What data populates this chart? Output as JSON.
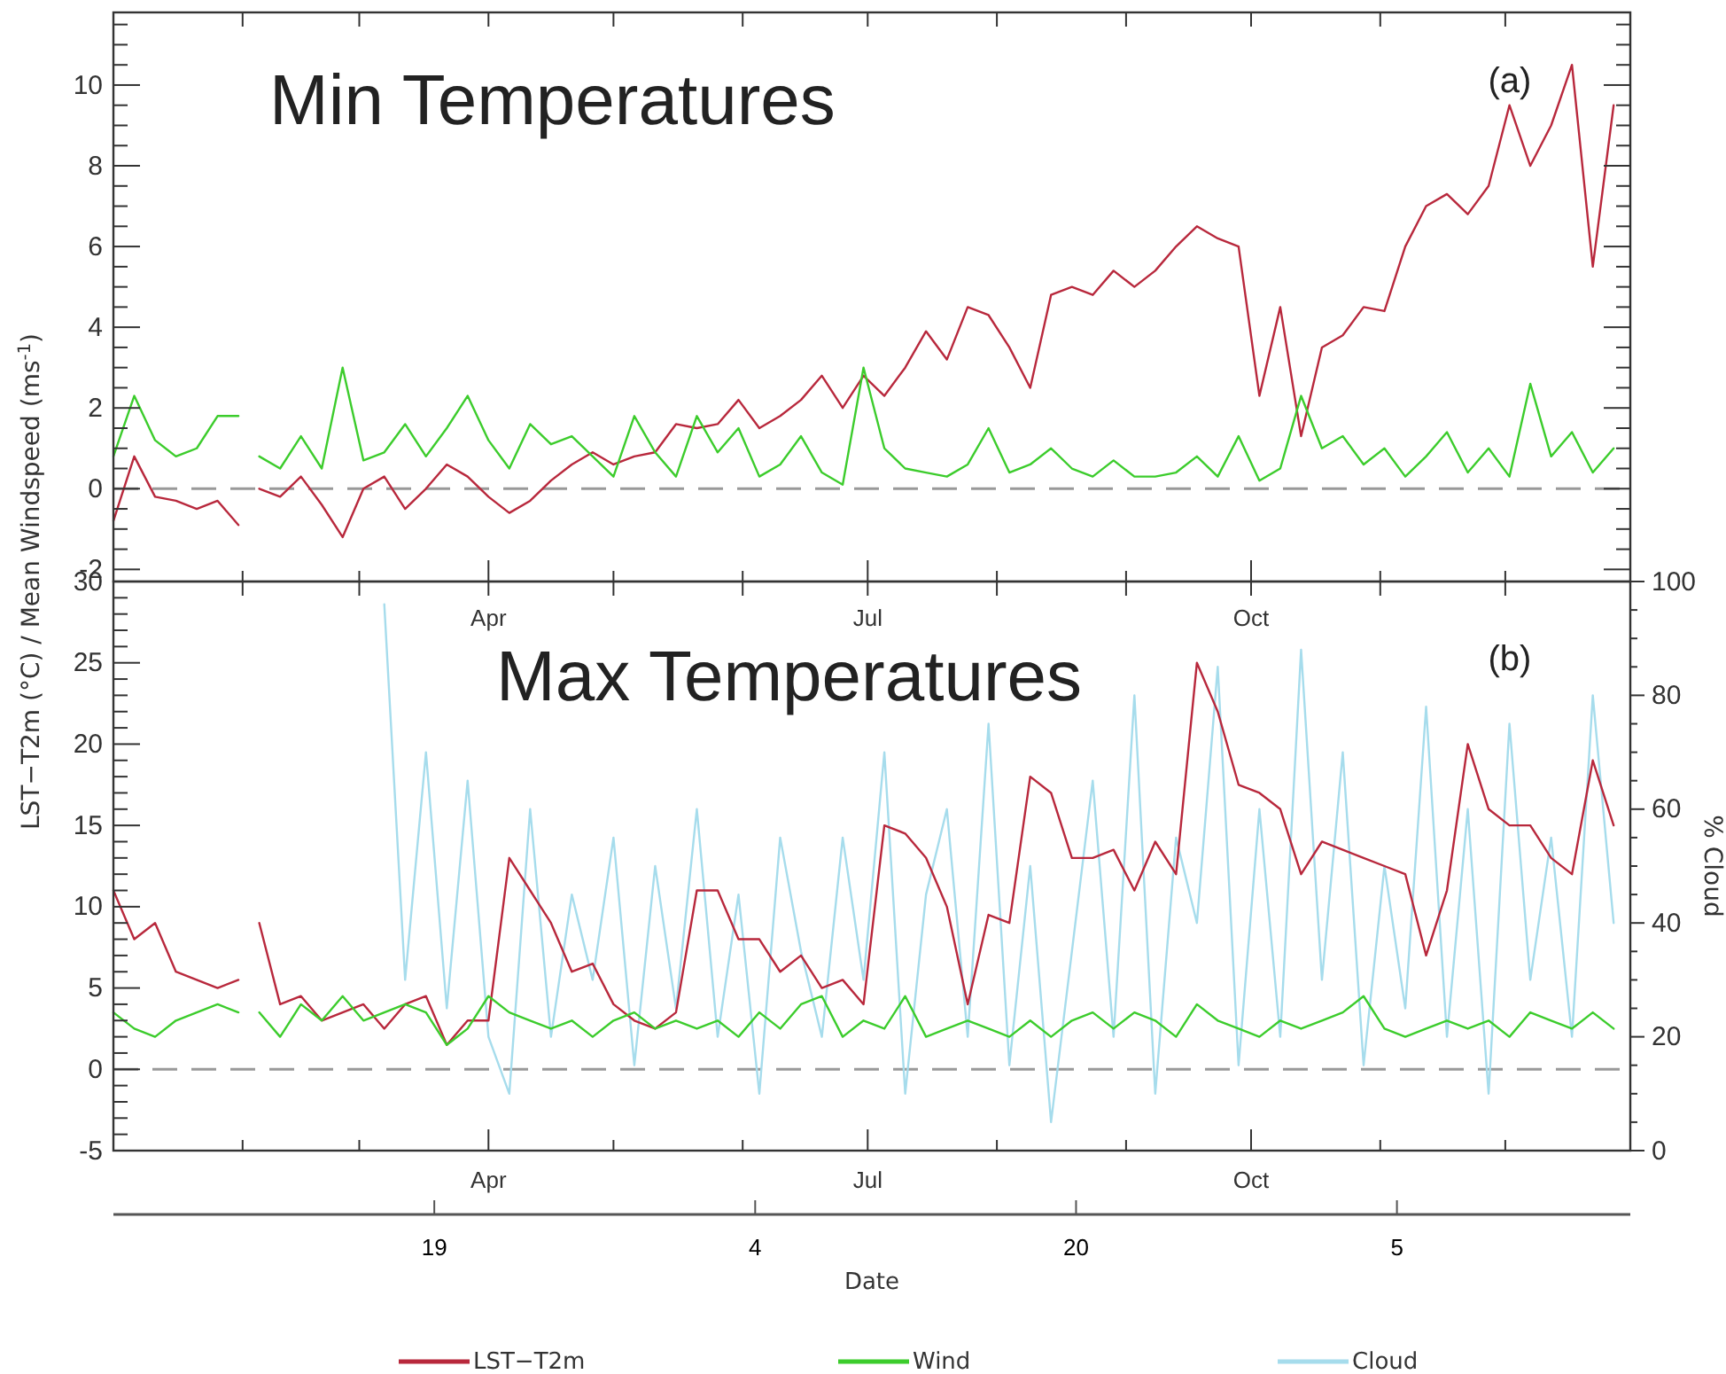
{
  "chart_data": [
    {
      "type": "line",
      "annotations": [
        "Min Temperatures",
        "(a)"
      ],
      "x": [
        "--01-01",
        "--01-06",
        "--01-11",
        "--01-16",
        "--01-21",
        "--01-26",
        "--01-31",
        "--02-02",
        "--02-05",
        "--02-10",
        "--02-15",
        "--02-20",
        "--02-25",
        "--03-02",
        "--03-07",
        "--03-12",
        "--03-17",
        "--03-22",
        "--03-27",
        "--04-01",
        "--04-06",
        "--04-11",
        "--04-16",
        "--04-21",
        "--04-26",
        "--05-01",
        "--05-06",
        "--05-11",
        "--05-16",
        "--05-21",
        "--05-26",
        "--05-31",
        "--06-05",
        "--06-10",
        "--06-15",
        "--06-20",
        "--06-25",
        "--06-30",
        "--07-05",
        "--07-10",
        "--07-15",
        "--07-20",
        "--07-25",
        "--07-30",
        "--08-04",
        "--08-09",
        "--08-14",
        "--08-19",
        "--08-24",
        "--08-29",
        "--09-03",
        "--09-08",
        "--09-13",
        "--09-18",
        "--09-23",
        "--09-28",
        "--10-03",
        "--10-08",
        "--10-13",
        "--10-18",
        "--10-23",
        "--10-28",
        "--11-02",
        "--11-07",
        "--11-12",
        "--11-17",
        "--11-22",
        "--11-27",
        "--12-02",
        "--12-07",
        "--12-12",
        "--12-17",
        "--12-22",
        "--12-27"
      ],
      "series": [
        {
          "color": "#b8283c",
          "values": [
            -0.8,
            0.8,
            -0.2,
            -0.3,
            -0.5,
            -0.3,
            -0.9,
            null,
            0.0,
            -0.2,
            0.3,
            -0.4,
            -1.2,
            0.0,
            0.3,
            -0.5,
            0.0,
            0.6,
            0.3,
            -0.2,
            -0.6,
            -0.3,
            0.2,
            0.6,
            0.9,
            0.6,
            0.8,
            0.9,
            1.6,
            1.5,
            1.6,
            2.2,
            1.5,
            1.8,
            2.2,
            2.8,
            2.0,
            2.8,
            2.3,
            3.0,
            3.9,
            3.2,
            4.5,
            4.3,
            3.5,
            2.5,
            4.8,
            5.0,
            4.8,
            5.4,
            5.0,
            5.4,
            6.0,
            6.5,
            6.2,
            6.0,
            2.3,
            4.5,
            1.3,
            3.5,
            3.8,
            4.5,
            4.4,
            6.0,
            7.0,
            7.3,
            6.8,
            7.5,
            9.5,
            8.0,
            9.0,
            10.5,
            5.5,
            9.5
          ]
        },
        {
          "color": "#3ccc2c",
          "values": [
            0.8,
            2.3,
            1.2,
            0.8,
            1.0,
            1.8,
            1.8,
            null,
            0.8,
            0.5,
            1.3,
            0.5,
            3.0,
            0.7,
            0.9,
            1.6,
            0.8,
            1.5,
            2.3,
            1.2,
            0.5,
            1.6,
            1.1,
            1.3,
            0.8,
            0.3,
            1.8,
            0.9,
            0.3,
            1.8,
            0.9,
            1.5,
            0.3,
            0.6,
            1.3,
            0.4,
            0.1,
            3.0,
            1.0,
            0.5,
            0.4,
            0.3,
            0.6,
            1.5,
            0.4,
            0.6,
            1.0,
            0.5,
            0.3,
            0.7,
            0.3,
            0.3,
            0.4,
            0.8,
            0.3,
            1.3,
            0.2,
            0.5,
            2.3,
            1.0,
            1.3,
            0.6,
            1.0,
            0.3,
            0.8,
            1.4,
            0.4,
            1.0,
            0.3,
            2.6,
            0.8,
            1.4,
            0.4,
            1.0
          ]
        }
      ],
      "xlim": [
        "--01-01",
        "--12-31"
      ],
      "xticks": [
        {
          "value": "--01-01",
          "label": null
        },
        {
          "value": "--02-01",
          "label": null
        },
        {
          "value": "--03-01",
          "label": null
        },
        {
          "value": "--04-01",
          "label": "Apr"
        },
        {
          "value": "--05-01",
          "label": null
        },
        {
          "value": "--06-01",
          "label": null
        },
        {
          "value": "--07-01",
          "label": "Jul"
        },
        {
          "value": "--08-01",
          "label": null
        },
        {
          "value": "--09-01",
          "label": null
        },
        {
          "value": "--10-01",
          "label": "Oct"
        },
        {
          "value": "--11-01",
          "label": null
        },
        {
          "value": "--12-01",
          "label": null
        }
      ],
      "ylim": [
        -2.3,
        11.8
      ],
      "yticks": [
        -2,
        {
          "value": -1.5,
          "label": null
        },
        {
          "value": -1,
          "label": null
        },
        {
          "value": -0.5,
          "label": null
        },
        0,
        {
          "value": 0.5,
          "label": null
        },
        {
          "value": 1,
          "label": null
        },
        {
          "value": 1.5,
          "label": null
        },
        2,
        {
          "value": 2.5,
          "label": null
        },
        {
          "value": 3,
          "label": null
        },
        {
          "value": 3.5,
          "label": null
        },
        4,
        {
          "value": 4.5,
          "label": null
        },
        {
          "value": 5,
          "label": null
        },
        {
          "value": 5.5,
          "label": null
        },
        6,
        {
          "value": 6.5,
          "label": null
        },
        {
          "value": 7,
          "label": null
        },
        {
          "value": 7.5,
          "label": null
        },
        8,
        {
          "value": 8.5,
          "label": null
        },
        {
          "value": 9,
          "label": null
        },
        {
          "value": 9.5,
          "label": null
        },
        10,
        {
          "value": 10.5,
          "label": null
        },
        {
          "value": 11,
          "label": null
        },
        {
          "value": 11.5,
          "label": null
        }
      ],
      "ref_lines": [
        {
          "axis": "y",
          "value": 0,
          "color": "#999999",
          "line_style": "dashed"
        }
      ],
      "line_style": "solid",
      "grid": false,
      "legend": false
    },
    {
      "type": "line",
      "annotations": [
        "Max Temperatures",
        "(b)"
      ],
      "ylabel": "LST−T2m (°C) / Mean Windspeed (ms$^{-1}$)",
      "y2label": "% Cloud",
      "x2label": "Date",
      "x": [
        "--01-01",
        "--01-06",
        "--01-11",
        "--01-16",
        "--01-21",
        "--01-26",
        "--01-31",
        "--02-02",
        "--02-05",
        "--02-10",
        "--02-15",
        "--02-20",
        "--02-25",
        "--03-02",
        "--03-07",
        "--03-12",
        "--03-17",
        "--03-22",
        "--03-27",
        "--04-01",
        "--04-06",
        "--04-11",
        "--04-16",
        "--04-21",
        "--04-26",
        "--05-01",
        "--05-06",
        "--05-11",
        "--05-16",
        "--05-21",
        "--05-26",
        "--05-31",
        "--06-05",
        "--06-10",
        "--06-15",
        "--06-20",
        "--06-25",
        "--06-30",
        "--07-05",
        "--07-10",
        "--07-15",
        "--07-20",
        "--07-25",
        "--07-30",
        "--08-04",
        "--08-09",
        "--08-14",
        "--08-19",
        "--08-24",
        "--08-29",
        "--09-03",
        "--09-08",
        "--09-13",
        "--09-18",
        "--09-23",
        "--09-28",
        "--10-03",
        "--10-08",
        "--10-13",
        "--10-18",
        "--10-23",
        "--10-28",
        "--11-02",
        "--11-07",
        "--11-12",
        "--11-17",
        "--11-22",
        "--11-27",
        "--12-02",
        "--12-07",
        "--12-12",
        "--12-17",
        "--12-22",
        "--12-27"
      ],
      "series": [
        {
          "name": "LST−T2m",
          "color": "#b8283c",
          "values": [
            11,
            8,
            9,
            6,
            5.5,
            5,
            5.5,
            null,
            9,
            4,
            4.5,
            3,
            3.5,
            4,
            2.5,
            4,
            4.5,
            1.5,
            3,
            3,
            13,
            11,
            9,
            6,
            6.5,
            4,
            3,
            2.5,
            3.5,
            11,
            11,
            8,
            8,
            6,
            7,
            5,
            5.5,
            4,
            15,
            14.5,
            13,
            10,
            4,
            9.5,
            9,
            18,
            17,
            13,
            13,
            13.5,
            11,
            14,
            12,
            25,
            22,
            17.5,
            17,
            16,
            12,
            14,
            13.5,
            13,
            12.5,
            12,
            7,
            11,
            20,
            16,
            15,
            15,
            13,
            12,
            19,
            15
          ]
        },
        {
          "name": "Wind",
          "color": "#3ccc2c",
          "values": [
            3.5,
            2.5,
            2.0,
            3.0,
            3.5,
            4.0,
            3.5,
            null,
            3.5,
            2.0,
            4.0,
            3.0,
            4.5,
            3.0,
            3.5,
            4.0,
            3.5,
            1.5,
            2.5,
            4.5,
            3.5,
            3.0,
            2.5,
            3.0,
            2.0,
            3.0,
            3.5,
            2.5,
            3.0,
            2.5,
            3.0,
            2.0,
            3.5,
            2.5,
            4.0,
            4.5,
            2.0,
            3.0,
            2.5,
            4.5,
            2.0,
            2.5,
            3.0,
            2.5,
            2.0,
            3.0,
            2.0,
            3.0,
            3.5,
            2.5,
            3.5,
            3.0,
            2.0,
            4.0,
            3.0,
            2.5,
            2.0,
            3.0,
            2.5,
            3.0,
            3.5,
            4.5,
            2.5,
            2.0,
            2.5,
            3.0,
            2.5,
            3.0,
            2.0,
            3.5,
            3.0,
            2.5,
            3.5,
            2.5
          ]
        },
        {
          "name": "Cloud",
          "color": "#a6dcec",
          "axis": "y2",
          "values": [
            null,
            null,
            null,
            null,
            null,
            null,
            null,
            null,
            null,
            null,
            null,
            null,
            null,
            null,
            96,
            30,
            70,
            25,
            65,
            20,
            10,
            60,
            20,
            45,
            30,
            55,
            15,
            50,
            25,
            60,
            20,
            45,
            10,
            55,
            35,
            20,
            55,
            30,
            70,
            10,
            45,
            60,
            20,
            75,
            15,
            50,
            5,
            35,
            65,
            20,
            80,
            10,
            55,
            40,
            85,
            15,
            60,
            20,
            88,
            30,
            70,
            15,
            50,
            25,
            78,
            20,
            60,
            10,
            75,
            30,
            55,
            20,
            80,
            40
          ]
        }
      ],
      "xlim": [
        "--01-01",
        "--12-31"
      ],
      "xticks": [
        {
          "value": "--01-01",
          "label": null
        },
        {
          "value": "--02-01",
          "label": null
        },
        {
          "value": "--03-01",
          "label": null
        },
        {
          "value": "--04-01",
          "label": "Apr"
        },
        {
          "value": "--05-01",
          "label": null
        },
        {
          "value": "--06-01",
          "label": null
        },
        {
          "value": "--07-01",
          "label": "Jul"
        },
        {
          "value": "--08-01",
          "label": null
        },
        {
          "value": "--09-01",
          "label": null
        },
        {
          "value": "--10-01",
          "label": "Oct"
        },
        {
          "value": "--11-01",
          "label": null
        },
        {
          "value": "--12-01",
          "label": null
        }
      ],
      "x2lim": [
        "--01-01",
        "--12-31"
      ],
      "x2ticks": [
        {
          "value": "--03-19",
          "label": "19"
        },
        {
          "value": "--06-04",
          "label": "4"
        },
        {
          "value": "--08-20",
          "label": "20"
        },
        {
          "value": "--11-05",
          "label": "5"
        }
      ],
      "ylim": [
        -5,
        30
      ],
      "yticks": [
        -5,
        {
          "value": -4,
          "label": null
        },
        {
          "value": -3,
          "label": null
        },
        {
          "value": -2,
          "label": null
        },
        {
          "value": -1,
          "label": null
        },
        0,
        {
          "value": 1,
          "label": null
        },
        {
          "value": 2,
          "label": null
        },
        {
          "value": 3,
          "label": null
        },
        {
          "value": 4,
          "label": null
        },
        5,
        {
          "value": 6,
          "label": null
        },
        {
          "value": 7,
          "label": null
        },
        {
          "value": 8,
          "label": null
        },
        {
          "value": 9,
          "label": null
        },
        10,
        {
          "value": 11,
          "label": null
        },
        {
          "value": 12,
          "label": null
        },
        {
          "value": 13,
          "label": null
        },
        {
          "value": 14,
          "label": null
        },
        15,
        {
          "value": 16,
          "label": null
        },
        {
          "value": 17,
          "label": null
        },
        {
          "value": 18,
          "label": null
        },
        {
          "value": 19,
          "label": null
        },
        20,
        {
          "value": 21,
          "label": null
        },
        {
          "value": 22,
          "label": null
        },
        {
          "value": 23,
          "label": null
        },
        {
          "value": 24,
          "label": null
        },
        25,
        {
          "value": 26,
          "label": null
        },
        {
          "value": 27,
          "label": null
        },
        {
          "value": 28,
          "label": null
        },
        {
          "value": 29,
          "label": null
        },
        30
      ],
      "y2lim": [
        0,
        100
      ],
      "y2ticks": [
        0,
        {
          "value": 5,
          "label": null
        },
        {
          "value": 10,
          "label": null
        },
        {
          "value": 15,
          "label": null
        },
        20,
        {
          "value": 25,
          "label": null
        },
        {
          "value": 30,
          "label": null
        },
        {
          "value": 35,
          "label": null
        },
        40,
        {
          "value": 45,
          "label": null
        },
        {
          "value": 50,
          "label": null
        },
        {
          "value": 55,
          "label": null
        },
        60,
        {
          "value": 65,
          "label": null
        },
        {
          "value": 70,
          "label": null
        },
        {
          "value": 75,
          "label": null
        },
        80,
        {
          "value": 85,
          "label": null
        },
        {
          "value": 90,
          "label": null
        },
        {
          "value": 95,
          "label": null
        },
        100
      ],
      "ref_lines": [
        {
          "axis": "y",
          "value": 0,
          "color": "#999999",
          "line_style": "dashed"
        }
      ],
      "line_style": "solid",
      "grid": false,
      "legend": "bottom"
    }
  ]
}
